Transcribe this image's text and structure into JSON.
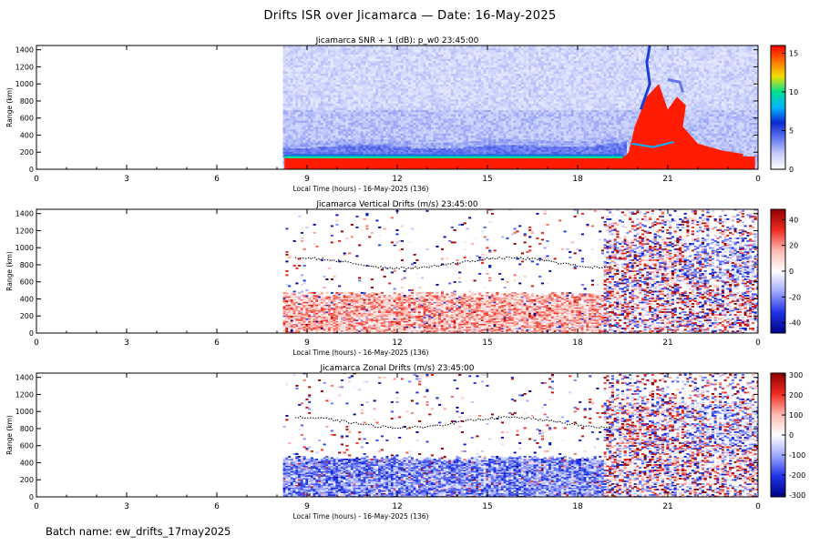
{
  "figure": {
    "title": "Drifts ISR over Jicamarca — Date: 16-May-2025",
    "batch_label": "Batch name: ew_drifts_17may2025"
  },
  "colors": {
    "snr_colormap": [
      "#ffffff",
      "#c6cdfb",
      "#6476f0",
      "#0a2ad0",
      "#00b4ff",
      "#00e090",
      "#f0e000",
      "#ff7000",
      "#ff0000"
    ],
    "drift_colormap": [
      "#00008a",
      "#1e34e6",
      "#9ea8ff",
      "#ffffff",
      "#ffb8b0",
      "#f02a20",
      "#900000"
    ]
  },
  "chart_data": [
    {
      "type": "heatmap",
      "title": "Jicamarca SNR + 1 (dB): p_w0 23:45:00",
      "xlabel": "Local Time (hours) - 16-May-2025 (136)",
      "ylabel": "Range (km)",
      "xticks": [
        "0",
        "3",
        "6",
        "9",
        "12",
        "15",
        "18",
        "21",
        "0"
      ],
      "yticks": [
        "0",
        "200",
        "400",
        "600",
        "800",
        "1000",
        "1200",
        "1400"
      ],
      "xlim": [
        0,
        24
      ],
      "ylim": [
        0,
        1450
      ],
      "colorbar": {
        "ticks": [
          "0",
          "5",
          "10",
          "15"
        ],
        "range": [
          0,
          16
        ]
      },
      "data_start_hour": 8.2,
      "features": [
        {
          "name": "strong echo layer",
          "x": [
            8.2,
            24
          ],
          "y": [
            0,
            150
          ],
          "snr": 15
        },
        {
          "name": "F-region band",
          "x": [
            8.2,
            19.5
          ],
          "y": [
            150,
            350
          ],
          "snr": 3
        },
        {
          "name": "spread-F plume",
          "x": [
            19.5,
            23.5
          ],
          "y": [
            200,
            1450
          ],
          "snr": 15
        }
      ]
    },
    {
      "type": "heatmap",
      "title": "Jicamarca Vertical Drifts (m/s) 23:45:00",
      "xlabel": "Local Time (hours) - 16-May-2025 (136)",
      "ylabel": "Range (km)",
      "xticks": [
        "0",
        "3",
        "6",
        "9",
        "12",
        "15",
        "18",
        "21",
        "0"
      ],
      "yticks": [
        "0",
        "200",
        "400",
        "600",
        "800",
        "1000",
        "1200",
        "1400"
      ],
      "xlim": [
        0,
        24
      ],
      "ylim": [
        0,
        1450
      ],
      "colorbar": {
        "ticks": [
          "40",
          "20",
          "0",
          "-20",
          "-40"
        ],
        "range": [
          -48,
          48
        ]
      },
      "data_start_hour": 8.2,
      "features": [
        {
          "name": "upward drift region",
          "x": [
            8.2,
            18.5
          ],
          "y": [
            0,
            400
          ],
          "drift": 15
        },
        {
          "name": "evening disturbed region",
          "x": [
            19,
            24
          ],
          "y": [
            0,
            1450
          ],
          "drift": 0
        }
      ]
    },
    {
      "type": "heatmap",
      "title": "Jicamarca Zonal Drifts (m/s) 23:45:00",
      "xlabel": "Local Time (hours) - 16-May-2025 (136)",
      "ylabel": "Range (km)",
      "xticks": [
        "0",
        "3",
        "6",
        "9",
        "12",
        "15",
        "18",
        "21",
        "0"
      ],
      "yticks": [
        "0",
        "200",
        "400",
        "600",
        "800",
        "1000",
        "1200",
        "1400"
      ],
      "xlim": [
        0,
        24
      ],
      "ylim": [
        0,
        1450
      ],
      "colorbar": {
        "ticks": [
          "300",
          "200",
          "100",
          "0",
          "-100",
          "-200",
          "-300"
        ],
        "range": [
          -310,
          310
        ]
      },
      "data_start_hour": 8.2,
      "features": [
        {
          "name": "westward drift region",
          "x": [
            8.2,
            18.5
          ],
          "y": [
            0,
            500
          ],
          "drift": -120
        },
        {
          "name": "evening disturbed region",
          "x": [
            19,
            24
          ],
          "y": [
            0,
            1450
          ],
          "drift": 60
        }
      ]
    }
  ]
}
